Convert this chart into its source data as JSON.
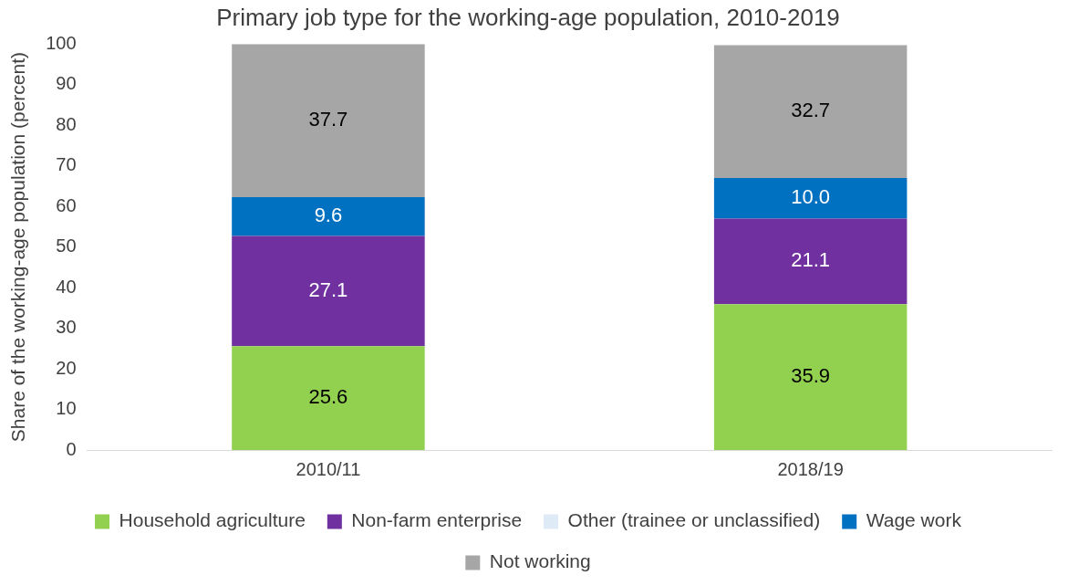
{
  "chart_data": {
    "type": "bar",
    "title": "Primary job type for the working-age population, 2010-2019",
    "ylabel": "Share of the working-age population (percent)",
    "categories": [
      "2010/11",
      "2018/19"
    ],
    "stacked": true,
    "ylim": [
      0,
      100
    ],
    "yticks": [
      0,
      10,
      20,
      30,
      40,
      50,
      60,
      70,
      80,
      90,
      100
    ],
    "grid": false,
    "legend": "bottom",
    "series": [
      {
        "name": "Household agriculture",
        "color": "#92d050",
        "values": [
          25.6,
          35.9
        ],
        "value_labels": [
          "25.6",
          "35.9"
        ]
      },
      {
        "name": "Non-farm enterprise",
        "color": "#7030a0",
        "values": [
          27.1,
          21.1
        ],
        "value_labels": [
          "27.1",
          "21.1"
        ]
      },
      {
        "name": "Other (trainee or unclassified)",
        "color": "#deebf7",
        "values": [
          null,
          null
        ],
        "value_labels": [
          null,
          null
        ]
      },
      {
        "name": "Wage work",
        "color": "#0070c0",
        "values": [
          9.6,
          10.0
        ],
        "value_labels": [
          "9.6",
          "10.0"
        ]
      },
      {
        "name": "Not working",
        "color": "#a6a6a6",
        "values": [
          37.7,
          32.7
        ],
        "value_labels": [
          "37.7",
          "32.7"
        ]
      }
    ]
  }
}
